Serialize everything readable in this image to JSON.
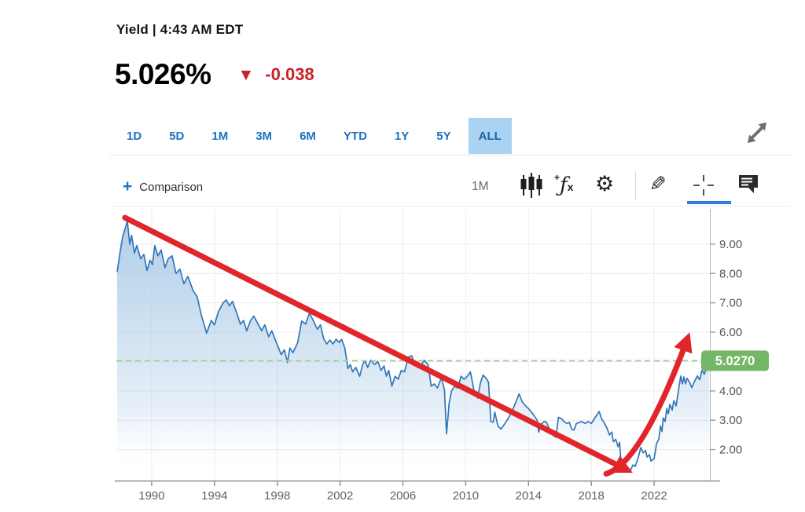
{
  "header": {
    "title": "Yield | 4:43 AM EDT"
  },
  "quote": {
    "value": "5.026%",
    "change": "-0.038",
    "direction": "down",
    "down_color": "#c92128"
  },
  "ranges": {
    "items": [
      "1D",
      "5D",
      "1M",
      "3M",
      "6M",
      "YTD",
      "1Y",
      "5Y",
      "ALL"
    ],
    "selected": "ALL"
  },
  "toolbar": {
    "comparison_label": "Comparison",
    "interval_label": "1M",
    "icons": [
      "candlestick-chart-icon",
      "function-fx-icon",
      "gear-icon",
      "draw-pencil-icon",
      "crosshair-icon",
      "comment-icon"
    ],
    "active_tool": "crosshair-icon",
    "expand_icon": "expand-icon"
  },
  "chart_data": {
    "type": "area",
    "series_name": "Yield",
    "xlim": [
      1987.75,
      2025.55
    ],
    "ylim": [
      1.0,
      10.2
    ],
    "x_ticks": [
      1990,
      1994,
      1998,
      2002,
      2006,
      2010,
      2014,
      2018,
      2022
    ],
    "y_tick_values": [
      9,
      8,
      7,
      6,
      4,
      3,
      2
    ],
    "y_tick_labels": [
      "9.00",
      "8.00",
      "7.00",
      "6.00",
      "4.00",
      "3.00",
      "2.00"
    ],
    "y_grid_values": [
      2,
      3,
      4,
      5,
      6,
      7,
      8,
      9
    ],
    "grid": true,
    "legend": "none",
    "last_price": 5.027,
    "last_price_label": "5.0270",
    "reference_line_value": 5.027,
    "points": [
      [
        1987.8,
        8.05
      ],
      [
        1987.95,
        8.6
      ],
      [
        1988.15,
        9.25
      ],
      [
        1988.45,
        9.78
      ],
      [
        1988.6,
        9.0
      ],
      [
        1988.72,
        9.3
      ],
      [
        1988.9,
        8.7
      ],
      [
        1989.05,
        8.95
      ],
      [
        1989.3,
        8.5
      ],
      [
        1989.5,
        8.65
      ],
      [
        1989.7,
        8.1
      ],
      [
        1989.9,
        8.45
      ],
      [
        1990.05,
        8.3
      ],
      [
        1990.2,
        8.95
      ],
      [
        1990.4,
        8.6
      ],
      [
        1990.6,
        8.8
      ],
      [
        1990.85,
        8.2
      ],
      [
        1991.05,
        8.5
      ],
      [
        1991.3,
        8.6
      ],
      [
        1991.55,
        8.0
      ],
      [
        1991.8,
        8.15
      ],
      [
        1992.05,
        7.65
      ],
      [
        1992.3,
        7.9
      ],
      [
        1992.65,
        7.4
      ],
      [
        1992.9,
        7.2
      ],
      [
        1993.15,
        6.6
      ],
      [
        1993.5,
        5.97
      ],
      [
        1993.8,
        6.4
      ],
      [
        1994.0,
        6.25
      ],
      [
        1994.25,
        6.7
      ],
      [
        1994.55,
        7.0
      ],
      [
        1994.75,
        7.1
      ],
      [
        1994.95,
        6.9
      ],
      [
        1995.15,
        7.05
      ],
      [
        1995.45,
        6.6
      ],
      [
        1995.65,
        6.27
      ],
      [
        1995.85,
        6.4
      ],
      [
        1996.05,
        6.05
      ],
      [
        1996.3,
        6.4
      ],
      [
        1996.5,
        6.55
      ],
      [
        1996.75,
        6.3
      ],
      [
        1997.0,
        6.05
      ],
      [
        1997.2,
        6.25
      ],
      [
        1997.45,
        5.85
      ],
      [
        1997.65,
        6.05
      ],
      [
        1998.0,
        5.57
      ],
      [
        1998.25,
        5.24
      ],
      [
        1998.45,
        5.4
      ],
      [
        1998.65,
        4.97
      ],
      [
        1998.8,
        5.46
      ],
      [
        1999.0,
        5.3
      ],
      [
        1999.3,
        5.65
      ],
      [
        1999.55,
        6.38
      ],
      [
        1999.8,
        6.28
      ],
      [
        2000.05,
        6.65
      ],
      [
        2000.3,
        6.38
      ],
      [
        2000.55,
        6.1
      ],
      [
        2000.75,
        6.25
      ],
      [
        2000.95,
        5.78
      ],
      [
        2001.15,
        5.6
      ],
      [
        2001.35,
        5.73
      ],
      [
        2001.55,
        5.6
      ],
      [
        2001.75,
        5.76
      ],
      [
        2001.95,
        5.65
      ],
      [
        2002.1,
        5.76
      ],
      [
        2002.3,
        5.46
      ],
      [
        2002.5,
        4.76
      ],
      [
        2002.65,
        4.9
      ],
      [
        2002.8,
        4.65
      ],
      [
        2003.0,
        4.8
      ],
      [
        2003.25,
        4.5
      ],
      [
        2003.45,
        4.92
      ],
      [
        2003.6,
        5.03
      ],
      [
        2003.75,
        4.8
      ],
      [
        2003.95,
        5.05
      ],
      [
        2004.2,
        4.9
      ],
      [
        2004.4,
        5.0
      ],
      [
        2004.6,
        4.7
      ],
      [
        2004.8,
        4.85
      ],
      [
        2004.95,
        4.5
      ],
      [
        2005.1,
        4.7
      ],
      [
        2005.3,
        4.16
      ],
      [
        2005.5,
        4.5
      ],
      [
        2005.7,
        4.4
      ],
      [
        2005.9,
        4.7
      ],
      [
        2006.1,
        4.65
      ],
      [
        2006.35,
        5.15
      ],
      [
        2006.55,
        5.2
      ],
      [
        2006.75,
        4.95
      ],
      [
        2006.95,
        4.8
      ],
      [
        2007.15,
        4.85
      ],
      [
        2007.35,
        5.05
      ],
      [
        2007.6,
        4.9
      ],
      [
        2007.8,
        4.16
      ],
      [
        2008.0,
        4.24
      ],
      [
        2008.2,
        4.1
      ],
      [
        2008.45,
        4.45
      ],
      [
        2008.65,
        4.03
      ],
      [
        2008.78,
        2.54
      ],
      [
        2008.95,
        3.6
      ],
      [
        2009.1,
        4.0
      ],
      [
        2009.3,
        4.16
      ],
      [
        2009.5,
        4.1
      ],
      [
        2009.7,
        4.5
      ],
      [
        2009.9,
        4.4
      ],
      [
        2010.1,
        4.5
      ],
      [
        2010.3,
        4.65
      ],
      [
        2010.55,
        3.95
      ],
      [
        2010.75,
        3.76
      ],
      [
        2010.95,
        4.3
      ],
      [
        2011.1,
        4.54
      ],
      [
        2011.3,
        4.43
      ],
      [
        2011.45,
        4.3
      ],
      [
        2011.6,
        2.96
      ],
      [
        2011.75,
        2.93
      ],
      [
        2011.85,
        3.28
      ],
      [
        2012.05,
        2.8
      ],
      [
        2012.25,
        2.7
      ],
      [
        2012.5,
        2.89
      ],
      [
        2012.75,
        3.1
      ],
      [
        2013.0,
        3.37
      ],
      [
        2013.2,
        3.63
      ],
      [
        2013.4,
        3.9
      ],
      [
        2013.6,
        3.63
      ],
      [
        2013.8,
        3.5
      ],
      [
        2014.05,
        3.37
      ],
      [
        2014.3,
        3.2
      ],
      [
        2014.55,
        3.0
      ],
      [
        2014.65,
        2.6
      ],
      [
        2014.8,
        2.87
      ],
      [
        2015.0,
        2.96
      ],
      [
        2015.15,
        2.93
      ],
      [
        2015.4,
        2.6
      ],
      [
        2015.6,
        2.47
      ],
      [
        2015.75,
        2.42
      ],
      [
        2015.9,
        3.1
      ],
      [
        2016.1,
        3.06
      ],
      [
        2016.25,
        2.96
      ],
      [
        2016.45,
        2.89
      ],
      [
        2016.6,
        2.93
      ],
      [
        2016.75,
        2.7
      ],
      [
        2016.9,
        2.67
      ],
      [
        2017.05,
        2.89
      ],
      [
        2017.25,
        2.93
      ],
      [
        2017.4,
        2.96
      ],
      [
        2017.6,
        2.89
      ],
      [
        2017.8,
        2.96
      ],
      [
        2018.0,
        2.89
      ],
      [
        2018.25,
        3.1
      ],
      [
        2018.5,
        3.3
      ],
      [
        2018.65,
        3.05
      ],
      [
        2018.8,
        2.93
      ],
      [
        2019.0,
        2.73
      ],
      [
        2019.15,
        2.5
      ],
      [
        2019.3,
        2.6
      ],
      [
        2019.4,
        2.27
      ],
      [
        2019.55,
        2.35
      ],
      [
        2019.7,
        2.1
      ],
      [
        2019.8,
        2.25
      ],
      [
        2019.9,
        1.48
      ],
      [
        2020.0,
        1.3
      ],
      [
        2020.15,
        1.3
      ],
      [
        2020.3,
        1.32
      ],
      [
        2020.5,
        1.3
      ],
      [
        2020.65,
        1.48
      ],
      [
        2020.8,
        1.43
      ],
      [
        2021.0,
        1.75
      ],
      [
        2021.15,
        2.07
      ],
      [
        2021.3,
        1.89
      ],
      [
        2021.45,
        1.97
      ],
      [
        2021.55,
        1.75
      ],
      [
        2021.7,
        1.83
      ],
      [
        2021.8,
        1.61
      ],
      [
        2022.0,
        1.69
      ],
      [
        2022.15,
        2.2
      ],
      [
        2022.3,
        2.36
      ],
      [
        2022.4,
        2.81
      ],
      [
        2022.5,
        2.62
      ],
      [
        2022.58,
        3.08
      ],
      [
        2022.7,
        2.96
      ],
      [
        2022.8,
        3.4
      ],
      [
        2022.9,
        3.22
      ],
      [
        2023.0,
        3.54
      ],
      [
        2023.15,
        3.35
      ],
      [
        2023.25,
        3.67
      ],
      [
        2023.4,
        3.49
      ],
      [
        2023.5,
        3.86
      ],
      [
        2023.6,
        4.2
      ],
      [
        2023.7,
        4.51
      ],
      [
        2023.8,
        4.24
      ],
      [
        2023.9,
        4.48
      ],
      [
        2024.0,
        4.24
      ],
      [
        2024.1,
        4.43
      ],
      [
        2024.25,
        4.3
      ],
      [
        2024.4,
        4.11
      ],
      [
        2024.55,
        4.3
      ],
      [
        2024.75,
        4.51
      ],
      [
        2024.9,
        4.38
      ],
      [
        2025.05,
        4.7
      ],
      [
        2025.2,
        4.57
      ],
      [
        2025.35,
        4.85
      ],
      [
        2025.5,
        5.027
      ]
    ],
    "annotations": [
      {
        "type": "arrow",
        "name": "downtrend-arrow",
        "from": [
          1988.3,
          9.9
        ],
        "to": [
          2020.2,
          1.33
        ]
      },
      {
        "type": "arrow",
        "name": "uptrend-arrow",
        "from": [
          2018.95,
          1.18
        ],
        "control": [
          2021.2,
          1.55
        ],
        "to": [
          2024.1,
          5.75
        ]
      }
    ],
    "colors": {
      "line": "#3177b8",
      "fill_top": "#9fc3e4",
      "fill_bottom": "#ffffff",
      "grid": "#ececec",
      "axis_line": "#8c8c8c",
      "right_axis_line": "#b3b3b3",
      "tick_text": "#565656",
      "reference_line": "#a5cf9e",
      "price_bubble_bg": "#74b768",
      "price_bubble_text": "#ffffff",
      "marker_dot": "#8fd9eb",
      "annotation_red": "#e0262b"
    }
  }
}
